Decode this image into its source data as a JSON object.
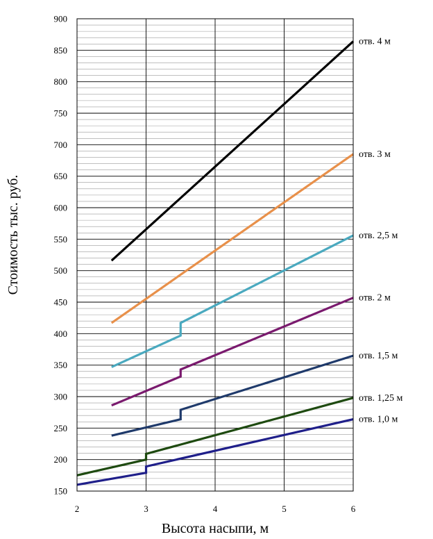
{
  "chart_data": {
    "type": "line",
    "title": "",
    "xlabel": "Высота насыпи, м",
    "ylabel": "Стоимость тыс. руб.",
    "xlim": [
      2,
      6
    ],
    "ylim": [
      150,
      900
    ],
    "x_ticks": [
      "2",
      "3",
      "4",
      "5",
      "6"
    ],
    "y_ticks": [
      "150",
      "200",
      "250",
      "300",
      "350",
      "400",
      "450",
      "500",
      "550",
      "600",
      "650",
      "700",
      "750",
      "800",
      "850",
      "900"
    ],
    "grid": "on",
    "series": [
      {
        "name": "отв. 4 м",
        "color": "#000000",
        "points": [
          [
            2.5,
            516
          ],
          [
            6,
            864
          ]
        ]
      },
      {
        "name": "отв. 3 м",
        "color": "#e8904a",
        "points": [
          [
            2.5,
            417
          ],
          [
            6,
            685
          ]
        ]
      },
      {
        "name": "отв. 2,5 м",
        "color": "#4aa9bf",
        "points": [
          [
            2.5,
            347
          ],
          [
            3.5,
            397
          ],
          [
            3.5,
            417
          ],
          [
            6,
            556
          ]
        ]
      },
      {
        "name": "отв. 2 м",
        "color": "#7a1a6e",
        "points": [
          [
            2.5,
            286
          ],
          [
            3.5,
            332
          ],
          [
            3.5,
            343
          ],
          [
            6,
            457
          ]
        ]
      },
      {
        "name": "отв. 1,5 м",
        "color": "#1f3a6b",
        "points": [
          [
            2.5,
            238
          ],
          [
            3.5,
            264
          ],
          [
            3.5,
            279
          ],
          [
            6,
            365
          ]
        ]
      },
      {
        "name": "отв. 1,25 м",
        "color": "#1e4a10",
        "points": [
          [
            2,
            175
          ],
          [
            3,
            200
          ],
          [
            3,
            209
          ],
          [
            6,
            298
          ]
        ]
      },
      {
        "name": "отв. 1,0 м",
        "color": "#1f1f8a",
        "points": [
          [
            2,
            160
          ],
          [
            3,
            179
          ],
          [
            3,
            189
          ],
          [
            6,
            264
          ]
        ]
      }
    ]
  }
}
